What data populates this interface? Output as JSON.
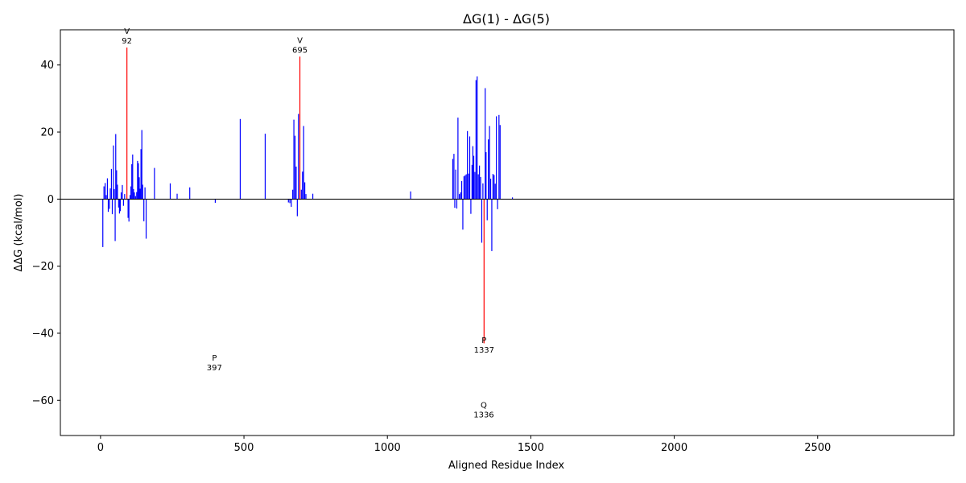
{
  "chart_data": {
    "type": "bar",
    "title": "ΔG(1) - ΔG(5)",
    "xlabel": "Aligned Residue Index",
    "ylabel": "ΔΔG (kcal/mol)",
    "xlim": [
      -140,
      2975
    ],
    "ylim": [
      -70.5,
      50.5
    ],
    "xticks": [
      0,
      500,
      1000,
      1500,
      2000,
      2500
    ],
    "yticks": [
      -60,
      -40,
      -20,
      0,
      20,
      40
    ],
    "grid": false,
    "zero_line": true,
    "colors": {
      "normal": "#0000ff",
      "highlight": "#ff0000",
      "zero_line": "#000000"
    },
    "bars": [
      {
        "x": 8,
        "y": -14.3
      },
      {
        "x": 12,
        "y": 3.8
      },
      {
        "x": 16,
        "y": 4.8
      },
      {
        "x": 20,
        "y": 1.2
      },
      {
        "x": 24,
        "y": 6.2
      },
      {
        "x": 27,
        "y": -3.8
      },
      {
        "x": 31,
        "y": -2.9
      },
      {
        "x": 34,
        "y": 3.2
      },
      {
        "x": 38,
        "y": 9.0
      },
      {
        "x": 41,
        "y": -4.5
      },
      {
        "x": 45,
        "y": 16.0
      },
      {
        "x": 48,
        "y": 3.0
      },
      {
        "x": 51,
        "y": -12.5
      },
      {
        "x": 53,
        "y": 19.4
      },
      {
        "x": 56,
        "y": 8.6
      },
      {
        "x": 59,
        "y": 4.3
      },
      {
        "x": 63,
        "y": -2.5
      },
      {
        "x": 66,
        "y": -4.3
      },
      {
        "x": 69,
        "y": -3.6
      },
      {
        "x": 72,
        "y": 2.0
      },
      {
        "x": 76,
        "y": 4.2
      },
      {
        "x": 80,
        "y": -2.0
      },
      {
        "x": 84,
        "y": 1.5
      },
      {
        "x": 92,
        "y": 45.2,
        "highlight": true
      },
      {
        "x": 96,
        "y": -5.6
      },
      {
        "x": 99,
        "y": -6.7
      },
      {
        "x": 103,
        "y": 1.2
      },
      {
        "x": 106,
        "y": 3.8
      },
      {
        "x": 109,
        "y": 10.4
      },
      {
        "x": 112,
        "y": 13.3
      },
      {
        "x": 115,
        "y": 3.0
      },
      {
        "x": 118,
        "y": 2.0
      },
      {
        "x": 122,
        "y": 0.9
      },
      {
        "x": 126,
        "y": 2.1
      },
      {
        "x": 129,
        "y": 11.4
      },
      {
        "x": 132,
        "y": 10.7
      },
      {
        "x": 135,
        "y": 6.5
      },
      {
        "x": 138,
        "y": 3.1
      },
      {
        "x": 141,
        "y": 14.9
      },
      {
        "x": 144,
        "y": 20.6
      },
      {
        "x": 147,
        "y": 4.3
      },
      {
        "x": 151,
        "y": -6.6
      },
      {
        "x": 155,
        "y": 3.5
      },
      {
        "x": 159,
        "y": -11.8
      },
      {
        "x": 188,
        "y": 9.3
      },
      {
        "x": 243,
        "y": 4.7
      },
      {
        "x": 267,
        "y": 1.6
      },
      {
        "x": 311,
        "y": 3.5
      },
      {
        "x": 400,
        "y": -1.1
      },
      {
        "x": 487,
        "y": 23.9
      },
      {
        "x": 574,
        "y": 19.5
      },
      {
        "x": 655,
        "y": -1.0
      },
      {
        "x": 660,
        "y": -1.2
      },
      {
        "x": 665,
        "y": -2.3
      },
      {
        "x": 670,
        "y": 2.8
      },
      {
        "x": 674,
        "y": 23.7
      },
      {
        "x": 678,
        "y": 18.9
      },
      {
        "x": 682,
        "y": 9.7
      },
      {
        "x": 686,
        "y": -5.1
      },
      {
        "x": 690,
        "y": 25.4
      },
      {
        "x": 695,
        "y": 42.5,
        "highlight": true
      },
      {
        "x": 700,
        "y": 2.8
      },
      {
        "x": 704,
        "y": 8.2
      },
      {
        "x": 708,
        "y": 21.8
      },
      {
        "x": 712,
        "y": 5.0
      },
      {
        "x": 716,
        "y": 1.5
      },
      {
        "x": 740,
        "y": 1.6
      },
      {
        "x": 1081,
        "y": 2.3
      },
      {
        "x": 1228,
        "y": 12.0
      },
      {
        "x": 1232,
        "y": 13.5
      },
      {
        "x": 1235,
        "y": -2.6
      },
      {
        "x": 1238,
        "y": 8.8
      },
      {
        "x": 1242,
        "y": -2.8
      },
      {
        "x": 1246,
        "y": 24.3
      },
      {
        "x": 1251,
        "y": 1.5
      },
      {
        "x": 1255,
        "y": 2.0
      },
      {
        "x": 1259,
        "y": 5.4
      },
      {
        "x": 1263,
        "y": -9.1
      },
      {
        "x": 1267,
        "y": 6.8
      },
      {
        "x": 1271,
        "y": 7.1
      },
      {
        "x": 1275,
        "y": 7.4
      },
      {
        "x": 1279,
        "y": 20.3
      },
      {
        "x": 1283,
        "y": 7.6
      },
      {
        "x": 1287,
        "y": 18.7
      },
      {
        "x": 1291,
        "y": -4.4
      },
      {
        "x": 1295,
        "y": 10.2
      },
      {
        "x": 1298,
        "y": 15.8
      },
      {
        "x": 1301,
        "y": 12.9
      },
      {
        "x": 1305,
        "y": 8.1
      },
      {
        "x": 1309,
        "y": 35.5
      },
      {
        "x": 1313,
        "y": 36.6
      },
      {
        "x": 1317,
        "y": 7.4
      },
      {
        "x": 1321,
        "y": 10.0
      },
      {
        "x": 1325,
        "y": 6.6
      },
      {
        "x": 1329,
        "y": -13.0
      },
      {
        "x": 1333,
        "y": 4.7
      },
      {
        "x": 1337,
        "y": -43.0,
        "highlight": true
      },
      {
        "x": 1341,
        "y": 33.1
      },
      {
        "x": 1344,
        "y": 14.0
      },
      {
        "x": 1348,
        "y": -6.3
      },
      {
        "x": 1352,
        "y": 17.8
      },
      {
        "x": 1356,
        "y": 21.8
      },
      {
        "x": 1360,
        "y": 6.1
      },
      {
        "x": 1364,
        "y": -15.5
      },
      {
        "x": 1368,
        "y": 7.5
      },
      {
        "x": 1372,
        "y": 7.2
      },
      {
        "x": 1376,
        "y": 4.6
      },
      {
        "x": 1380,
        "y": 24.7
      },
      {
        "x": 1384,
        "y": -3.0
      },
      {
        "x": 1389,
        "y": 25.1
      },
      {
        "x": 1393,
        "y": 22.1
      },
      {
        "x": 1436,
        "y": 0.5
      }
    ],
    "annotations": [
      {
        "x": 92,
        "y": 45.2,
        "residue": "V",
        "index": "92"
      },
      {
        "x": 695,
        "y": 42.5,
        "residue": "V",
        "index": "695"
      },
      {
        "x": 397,
        "y": -52.2,
        "residue": "P",
        "index": "397"
      },
      {
        "x": 1337,
        "y": -47.0,
        "residue": "P",
        "index": "1337"
      },
      {
        "x": 1336,
        "y": -66.3,
        "residue": "Q",
        "index": "1336"
      }
    ]
  }
}
